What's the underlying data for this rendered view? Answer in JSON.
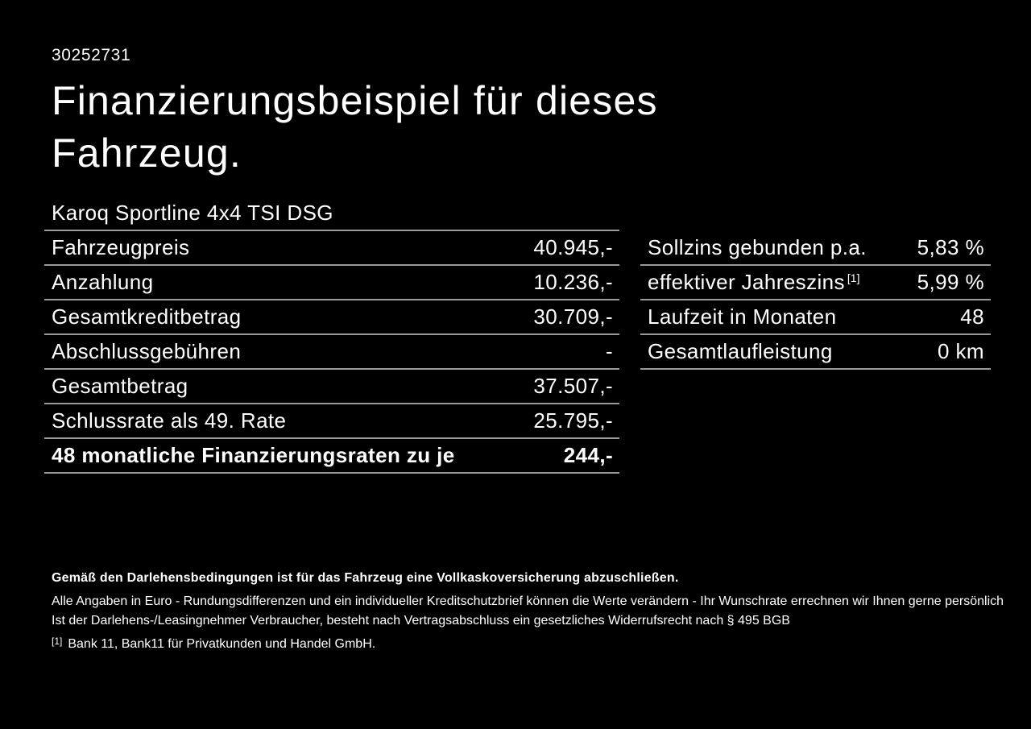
{
  "page": {
    "background_color": "#000000",
    "text_color": "#ffffff",
    "divider_color": "#9a9a9a"
  },
  "header": {
    "doc_id": "30252731",
    "title": "Finanzierungsbeispiel für dieses Fahrzeug.",
    "vehicle_model": "Karoq Sportline 4x4 TSI DSG"
  },
  "finance_table": {
    "rows": [
      {
        "label": "Fahrzeugpreis",
        "value": "40.945,-"
      },
      {
        "label": "Anzahlung",
        "value": "10.236,-"
      },
      {
        "label": "Gesamtkreditbetrag",
        "value": "30.709,-"
      },
      {
        "label": "Abschlussgebühren",
        "value": "-"
      },
      {
        "label": "Gesamtbetrag",
        "value": "37.507,-"
      },
      {
        "label": "Schlussrate als 49. Rate",
        "value": "25.795,-"
      },
      {
        "label": "48 monatliche Finanzierungsraten zu je",
        "value": "244,-"
      }
    ]
  },
  "conditions_table": {
    "rows": [
      {
        "label": "Sollzins gebunden p.a.",
        "value": "5,83 %"
      },
      {
        "label": "effektiver Jahreszins",
        "superscript": "[1]",
        "value": "5,99 %"
      },
      {
        "label": "Laufzeit in Monaten",
        "value": "48"
      },
      {
        "label": "Gesamtlaufleistung",
        "value": "0 km"
      }
    ]
  },
  "footer": {
    "insurance_note": "Gemäß den Darlehensbedingungen ist für das Fahrzeug eine Vollkaskoversicherung abzuschließen.",
    "disclaimer_line_1": "Alle Angaben in Euro - Rundungsdifferenzen und ein individueller Kreditschutzbrief können die Werte verändern - Ihr Wunschrate errechnen wir Ihnen gerne persönlich",
    "disclaimer_line_2": "Ist der Darlehens-/Leasingnehmer Verbraucher, besteht nach Vertragsabschluss ein gesetzliches Widerrufsrecht nach § 495 BGB",
    "footnote_marker": "[1]",
    "footnote_text": "Bank 11, Bank11 für Privatkunden und Handel GmbH."
  }
}
